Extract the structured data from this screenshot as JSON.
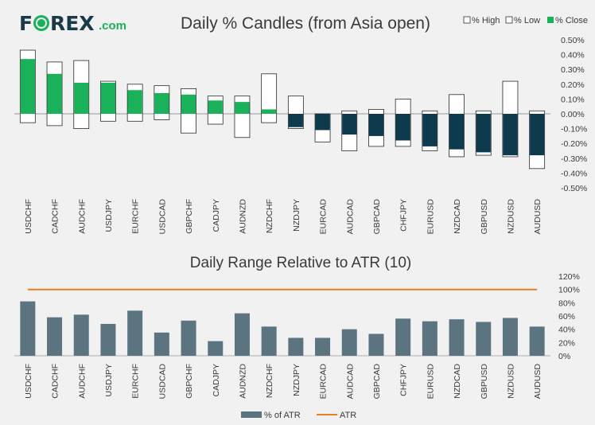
{
  "brand": {
    "name_left": "F",
    "name_right": "REX",
    "suffix": ".com"
  },
  "colors": {
    "background": "#f1f1f1",
    "brand_dark": "#1a3a4a",
    "positive_close": "#1ab15b",
    "negative_close": "#0e3a4e",
    "range_bar": "#5c7480",
    "atr_line": "#e87f22",
    "grid": "#dcdcdc",
    "text": "#3a3a3a"
  },
  "chart_data": [
    {
      "type": "bar",
      "title": "Daily % Candles (from Asia open)",
      "legend": [
        "% High",
        "% Low",
        "% Close"
      ],
      "legend_position": "top-right",
      "categories": [
        "USDCHF",
        "CADCHF",
        "AUDCHF",
        "USDJPY",
        "EURCHF",
        "USDCAD",
        "GBPCHF",
        "CADJPY",
        "AUDNZD",
        "NZDCHF",
        "NZDJPY",
        "EURCAD",
        "AUDCAD",
        "GBPCAD",
        "CHFJPY",
        "EURUSD",
        "NZDCAD",
        "GBPUSD",
        "NZDUSD",
        "AUDUSD"
      ],
      "series": [
        {
          "name": "% High",
          "values": [
            0.43,
            0.35,
            0.36,
            0.22,
            0.2,
            0.19,
            0.17,
            0.12,
            0.12,
            0.27,
            0.12,
            0.0,
            0.02,
            0.03,
            0.1,
            0.02,
            0.13,
            0.02,
            0.22,
            0.02
          ]
        },
        {
          "name": "% Low",
          "values": [
            -0.06,
            -0.08,
            -0.1,
            -0.05,
            -0.05,
            -0.04,
            -0.13,
            -0.07,
            -0.16,
            -0.06,
            -0.1,
            -0.19,
            -0.25,
            -0.22,
            -0.22,
            -0.25,
            -0.29,
            -0.28,
            -0.29,
            -0.37
          ]
        },
        {
          "name": "% Close",
          "values": [
            0.37,
            0.27,
            0.21,
            0.21,
            0.16,
            0.14,
            0.13,
            0.09,
            0.08,
            0.03,
            -0.09,
            -0.11,
            -0.14,
            -0.15,
            -0.18,
            -0.22,
            -0.24,
            -0.26,
            -0.28,
            -0.28
          ]
        }
      ],
      "yticks": [
        "0.50%",
        "0.40%",
        "0.30%",
        "0.20%",
        "0.10%",
        "0.00%",
        "-0.10%",
        "-0.20%",
        "-0.30%",
        "-0.40%",
        "-0.50%"
      ],
      "ylim": [
        -0.5,
        0.5
      ]
    },
    {
      "type": "bar",
      "title": "Daily Range Relative to ATR (10)",
      "legend": [
        "% of ATR",
        "ATR"
      ],
      "legend_position": "bottom",
      "categories": [
        "USDCHF",
        "CADCHF",
        "AUDCHF",
        "USDJPY",
        "EURCHF",
        "USDCAD",
        "GBPCHF",
        "CADJPY",
        "AUDNZD",
        "NZDCHF",
        "NZDJPY",
        "EURCAD",
        "AUDCAD",
        "GBPCAD",
        "CHFJPY",
        "EURUSD",
        "NZDCAD",
        "GBPUSD",
        "NZDUSD",
        "AUDUSD"
      ],
      "series": [
        {
          "name": "% of ATR",
          "values": [
            82,
            58,
            62,
            48,
            68,
            35,
            53,
            22,
            64,
            44,
            27,
            27,
            40,
            33,
            56,
            52,
            55,
            51,
            57,
            44
          ]
        },
        {
          "name": "ATR",
          "values": [
            100,
            100,
            100,
            100,
            100,
            100,
            100,
            100,
            100,
            100,
            100,
            100,
            100,
            100,
            100,
            100,
            100,
            100,
            100,
            100
          ]
        }
      ],
      "yticks": [
        "120%",
        "100%",
        "80%",
        "60%",
        "40%",
        "20%",
        "0%"
      ],
      "ylim": [
        0,
        120
      ]
    }
  ]
}
